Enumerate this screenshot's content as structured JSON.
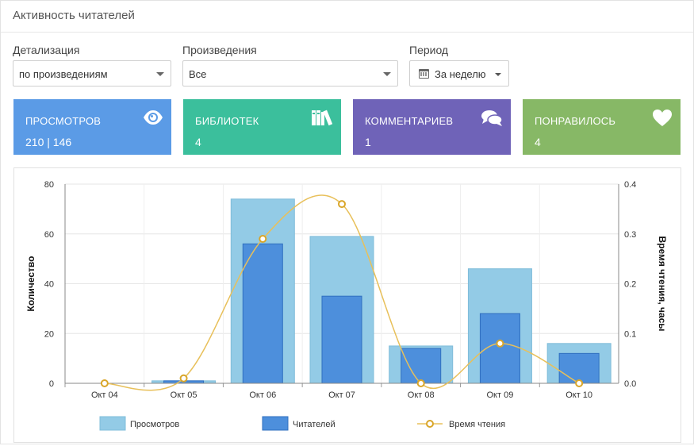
{
  "header": {
    "title": "Активность читателей"
  },
  "filters": {
    "detail_label": "Детализация",
    "detail_value": "по произведениям",
    "works_label": "Произведения",
    "works_value": "Все",
    "period_label": "Период",
    "period_value": "За неделю"
  },
  "stats": [
    {
      "label": "ПРОСМОТРОВ",
      "value": "210 | 146",
      "icon": "eye-icon",
      "color": "#5b9be6"
    },
    {
      "label": "БИБЛИОТЕК",
      "value": "4",
      "icon": "books-icon",
      "color": "#3bbf9c"
    },
    {
      "label": "КОММЕНТАРИЕВ",
      "value": "1",
      "icon": "comments-icon",
      "color": "#6f63b8"
    },
    {
      "label": "ПОНРАВИЛОСЬ",
      "value": "4",
      "icon": "heart-icon",
      "color": "#87b866"
    }
  ],
  "chart_data": {
    "type": "bar",
    "categories": [
      "Окт 04",
      "Окт 05",
      "Окт 06",
      "Окт 07",
      "Окт 08",
      "Окт 09",
      "Окт 10"
    ],
    "series": [
      {
        "name": "Просмотров",
        "type": "bar",
        "axis": "left",
        "color": "#93cbe6",
        "values": [
          0,
          1,
          74,
          59,
          15,
          46,
          16
        ]
      },
      {
        "name": "Читателей",
        "type": "bar",
        "axis": "left",
        "color": "#4d8fdc",
        "values": [
          0,
          1,
          56,
          35,
          14,
          28,
          12
        ]
      },
      {
        "name": "Время чтения",
        "type": "line",
        "axis": "right",
        "color": "#e8c05a",
        "values": [
          0,
          0.01,
          0.29,
          0.36,
          0,
          0.08,
          0
        ]
      }
    ],
    "ylabel": "Количество",
    "y2label": "Время чтения, часы",
    "ylim": [
      0,
      80
    ],
    "y2lim": [
      0,
      0.4
    ],
    "yticks": [
      "0",
      "20",
      "40",
      "60",
      "80"
    ],
    "y2ticks": [
      "0.0",
      "0.1",
      "0.2",
      "0.3",
      "0.4"
    ],
    "grid": true,
    "legend": "bottom"
  }
}
